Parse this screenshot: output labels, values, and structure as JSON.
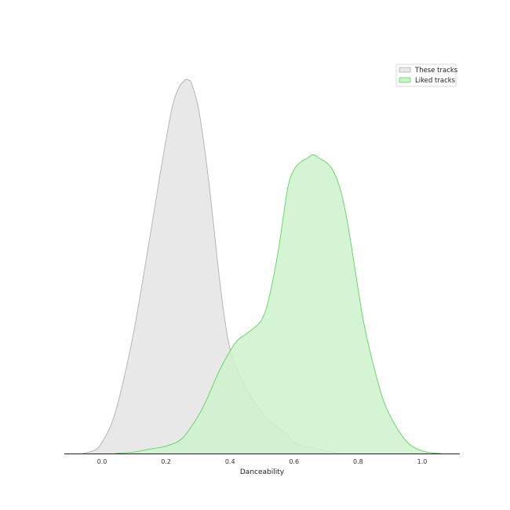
{
  "chart_data": {
    "type": "area",
    "title": "",
    "xlabel": "Danceability",
    "ylabel": "",
    "xlim": [
      -0.12,
      1.12
    ],
    "ylim": [
      0,
      1.0
    ],
    "x_ticks": [
      "0.0",
      "0.2",
      "0.4",
      "0.6",
      "0.8",
      "1.0"
    ],
    "x_tick_values": [
      0.0,
      0.2,
      0.4,
      0.6,
      0.8,
      1.0
    ],
    "grid": false,
    "legend_position": "top-right",
    "series": [
      {
        "name": "These tracks",
        "fill": "#e8e8e8",
        "stroke": "#a8a8a8",
        "x": [
          -0.06,
          -0.02,
          0.0,
          0.03,
          0.06,
          0.1,
          0.14,
          0.18,
          0.2,
          0.22,
          0.24,
          0.26,
          0.27,
          0.28,
          0.3,
          0.32,
          0.34,
          0.36,
          0.38,
          0.4,
          0.43,
          0.46,
          0.49,
          0.52,
          0.55,
          0.58,
          0.6,
          0.63,
          0.66,
          0.7,
          0.74
        ],
        "values": [
          0.0,
          0.01,
          0.03,
          0.08,
          0.17,
          0.33,
          0.53,
          0.74,
          0.84,
          0.93,
          0.98,
          1.0,
          1.0,
          0.99,
          0.93,
          0.82,
          0.68,
          0.52,
          0.38,
          0.28,
          0.21,
          0.16,
          0.12,
          0.09,
          0.07,
          0.05,
          0.03,
          0.02,
          0.015,
          0.007,
          0.0
        ]
      },
      {
        "name": "Liked tracks",
        "fill": "#ccf2cc",
        "stroke": "#55cc55",
        "x": [
          0.04,
          0.1,
          0.15,
          0.2,
          0.25,
          0.3,
          0.33,
          0.36,
          0.39,
          0.42,
          0.45,
          0.48,
          0.5,
          0.52,
          0.55,
          0.58,
          0.6,
          0.62,
          0.64,
          0.66,
          0.68,
          0.7,
          0.72,
          0.74,
          0.76,
          0.78,
          0.8,
          0.82,
          0.85,
          0.88,
          0.92,
          0.96,
          1.0,
          1.03,
          1.06
        ],
        "values": [
          0.0,
          0.004,
          0.012,
          0.02,
          0.04,
          0.1,
          0.15,
          0.21,
          0.26,
          0.3,
          0.32,
          0.34,
          0.36,
          0.41,
          0.54,
          0.71,
          0.76,
          0.78,
          0.79,
          0.8,
          0.79,
          0.78,
          0.76,
          0.72,
          0.65,
          0.55,
          0.44,
          0.34,
          0.23,
          0.14,
          0.07,
          0.025,
          0.007,
          0.002,
          0.0
        ]
      }
    ]
  }
}
